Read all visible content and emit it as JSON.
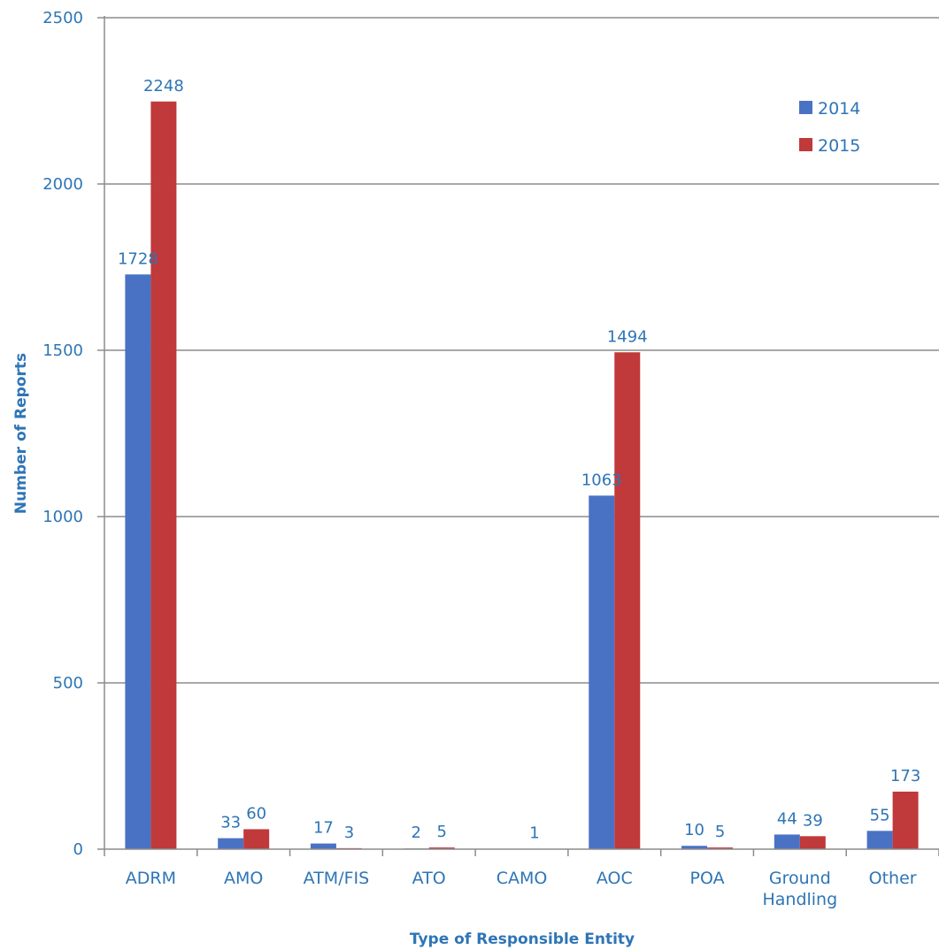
{
  "chart_data": {
    "type": "bar",
    "xlabel": "Type of Responsible Entity",
    "ylabel": "Number of Reports",
    "ylim": [
      0,
      2500
    ],
    "yticks": [
      0,
      500,
      1000,
      1500,
      2000,
      2500
    ],
    "grid": true,
    "legend_position": "top-right",
    "categories": [
      [
        "ADRM"
      ],
      [
        "AMO"
      ],
      [
        "ATM/FIS"
      ],
      [
        "ATO"
      ],
      [
        "CAMO"
      ],
      [
        "AOC"
      ],
      [
        "POA"
      ],
      [
        "Ground",
        "Handling"
      ],
      [
        "Other"
      ]
    ],
    "series": [
      {
        "name": "2014",
        "color": "#4a72c4",
        "values": [
          1728,
          33,
          17,
          2,
          0,
          1063,
          10,
          44,
          55
        ],
        "labels": [
          "1728",
          "33",
          "17",
          "2",
          "",
          "1063",
          "10",
          "44",
          "55"
        ]
      },
      {
        "name": "2015",
        "color": "#c0393b",
        "values": [
          2248,
          60,
          3,
          5,
          1,
          1494,
          5,
          39,
          173
        ],
        "labels": [
          "2248",
          "60",
          "3",
          "5",
          "1",
          "1494",
          "5",
          "39",
          "173"
        ]
      }
    ]
  }
}
